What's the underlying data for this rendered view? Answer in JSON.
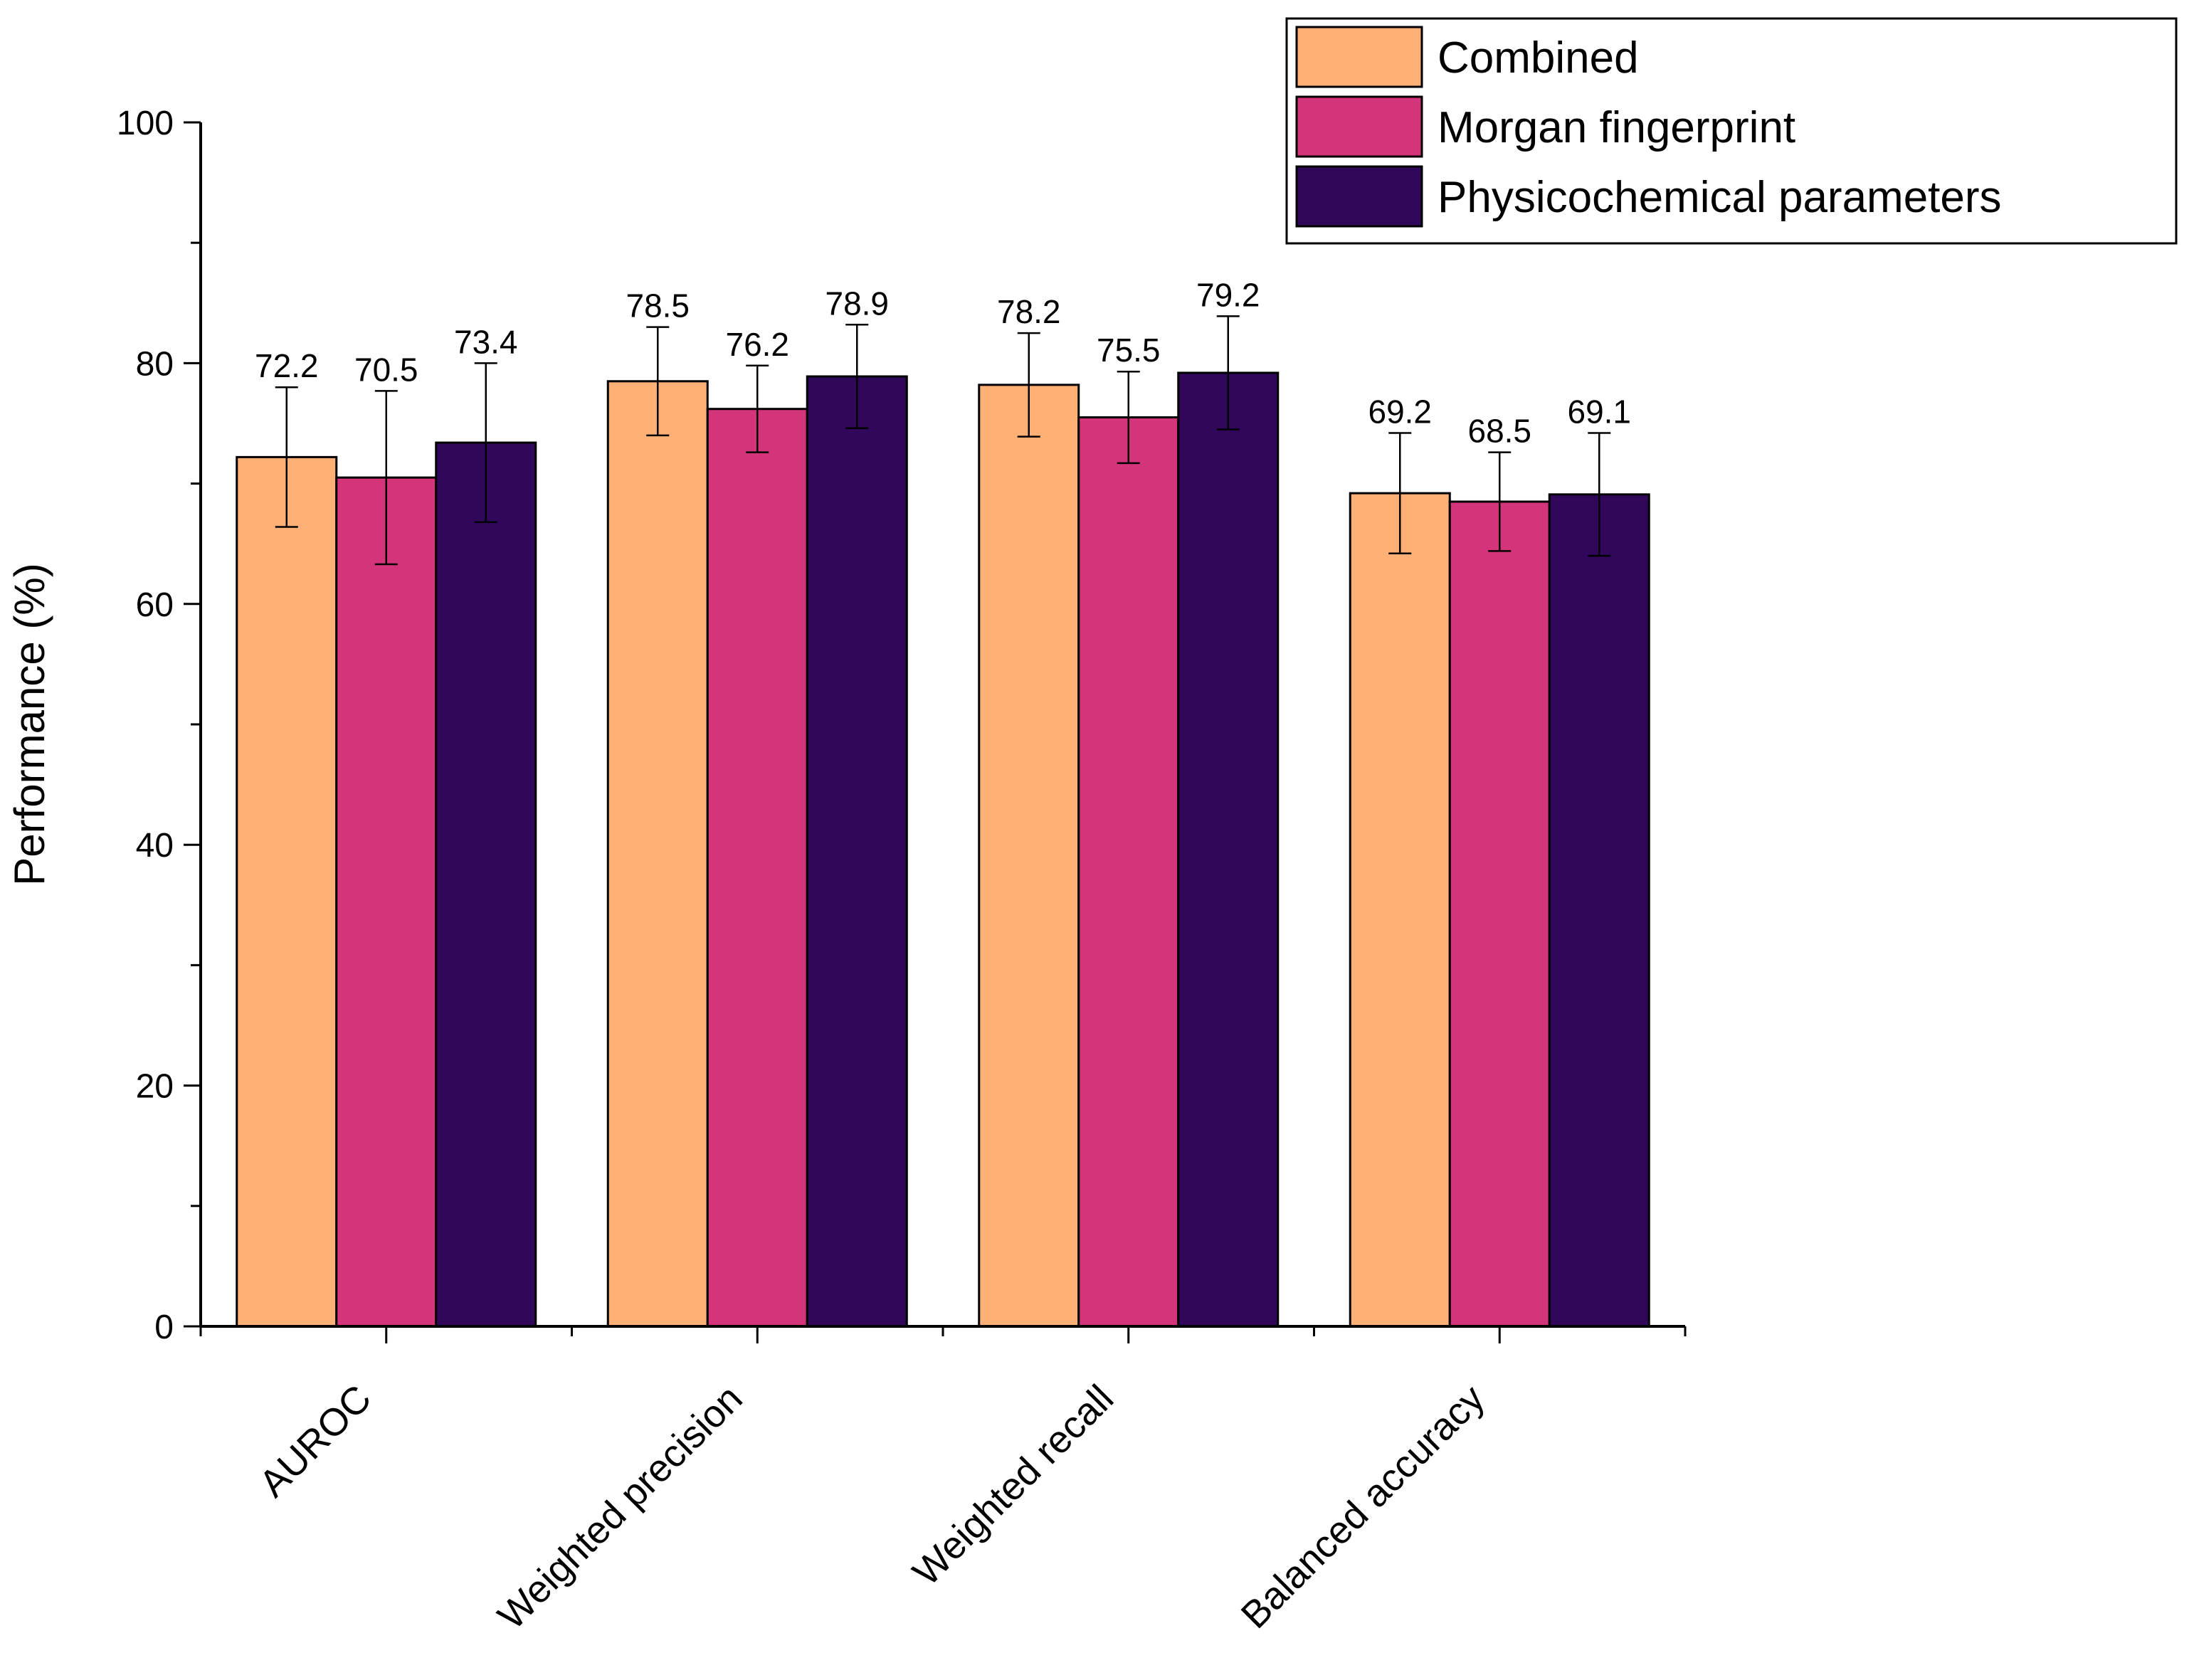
{
  "chart_data": {
    "type": "bar",
    "title": "",
    "xlabel": "",
    "ylabel": "Performance (%)",
    "ylim": [
      0,
      100
    ],
    "yticks": [
      0,
      20,
      40,
      60,
      80,
      100
    ],
    "ytick_labels": [
      "0",
      "20",
      "40",
      "60",
      "80",
      "100"
    ],
    "grid": false,
    "legend_position": "top-right",
    "categories": [
      "AUROC",
      "Weighted precision",
      "Weighted recall",
      "Balanced accuracy"
    ],
    "series": [
      {
        "name": "Combined",
        "color": "#FFB077",
        "values": [
          72.2,
          78.5,
          78.2,
          69.2
        ],
        "value_labels": [
          "72.2",
          "78.5",
          "78.2",
          "69.2"
        ],
        "error": [
          5.8,
          4.5,
          4.3,
          5.0
        ]
      },
      {
        "name": "Morgan fingerprint",
        "color": "#D3347A",
        "values": [
          70.5,
          76.2,
          75.5,
          68.5
        ],
        "value_labels": [
          "70.5",
          "76.2",
          "75.5",
          "68.5"
        ],
        "error": [
          7.2,
          3.6,
          3.8,
          4.1
        ]
      },
      {
        "name": "Physicochemical parameters",
        "color": "#30075A",
        "values": [
          73.4,
          78.9,
          79.2,
          69.1
        ],
        "value_labels": [
          "73.4",
          "78.9",
          "79.2",
          "69.1"
        ],
        "error": [
          6.6,
          4.3,
          4.7,
          5.1
        ]
      }
    ]
  }
}
